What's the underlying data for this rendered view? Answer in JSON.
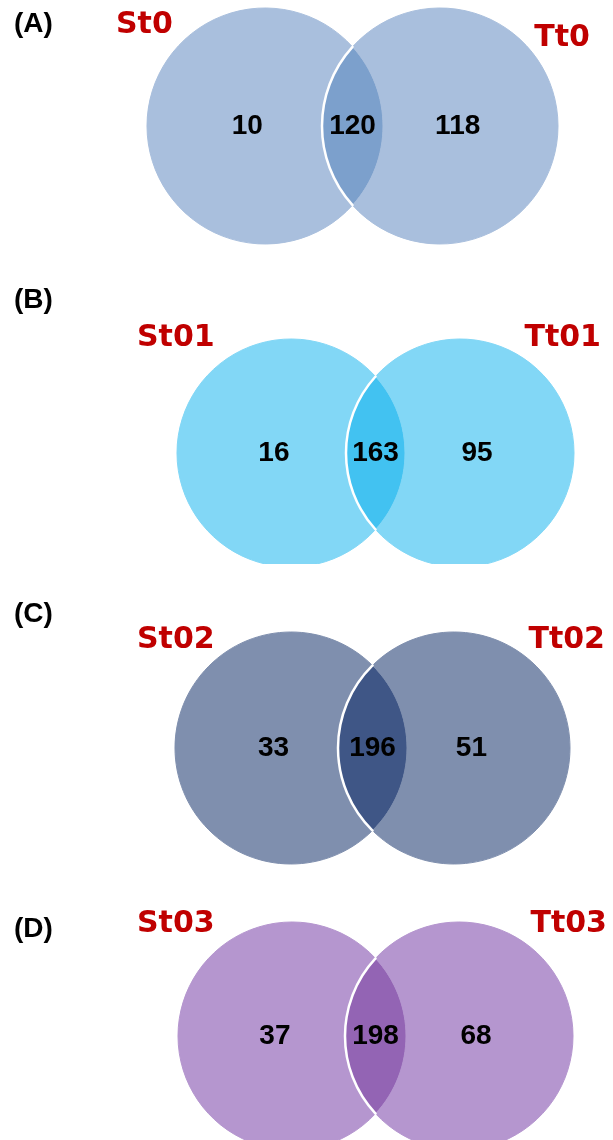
{
  "chart_data": [
    {
      "type": "other",
      "title": "(A)",
      "annotations": [
        "St0",
        "Tt0"
      ],
      "values": [
        10,
        120,
        118
      ],
      "colors": [
        "#a9bfdd",
        "#7ca0cc",
        "#a9bfdd"
      ],
      "data_labels": true
    },
    {
      "type": "other",
      "title": "(B)",
      "annotations": [
        "St01",
        "Tt01"
      ],
      "values": [
        16,
        163,
        95
      ],
      "colors": [
        "#82d7f6",
        "#42c2f1",
        "#82d7f6"
      ],
      "data_labels": true
    },
    {
      "type": "other",
      "title": "(C)",
      "annotations": [
        "St02",
        "Tt02"
      ],
      "values": [
        33,
        196,
        51
      ],
      "colors": [
        "#7f8fae",
        "#3f5686",
        "#7f8fae"
      ],
      "data_labels": true
    },
    {
      "type": "other",
      "title": "(D)",
      "annotations": [
        "St03",
        "Tt03"
      ],
      "values": [
        37,
        198,
        68
      ],
      "colors": [
        "#b596cf",
        "#9364b4",
        "#b596cf"
      ],
      "data_labels": true
    }
  ]
}
